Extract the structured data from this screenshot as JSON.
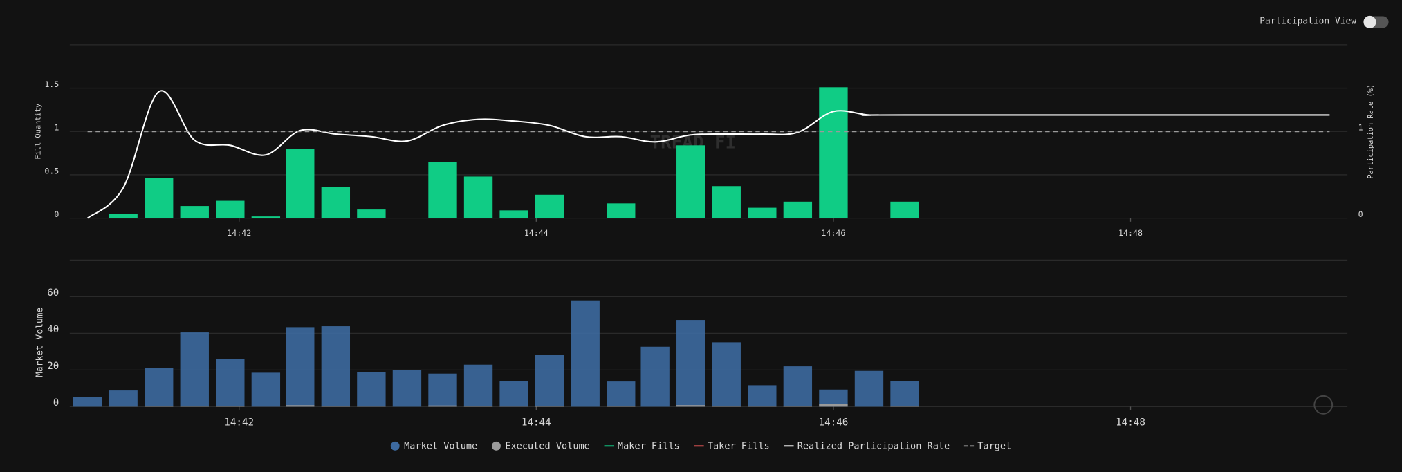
{
  "header": {
    "toggle_label": "Participation View",
    "watermark": "TREAD FI"
  },
  "chart_data": [
    {
      "type": "bar",
      "ylabel": "Fill Quantity",
      "y2label": "Participation Rate (%)",
      "x": [
        40.98,
        41.22,
        41.46,
        41.7,
        41.94,
        42.18,
        42.41,
        42.65,
        42.89,
        43.13,
        43.37,
        43.61,
        43.85,
        44.09,
        44.33,
        44.57,
        44.8,
        45.04,
        45.28,
        45.52,
        45.76,
        46.0,
        46.24,
        46.48
      ],
      "xlim": [
        40.86,
        49.46
      ],
      "xticks": [
        {
          "value": 42,
          "label": "14:42"
        },
        {
          "value": 44,
          "label": "14:44"
        },
        {
          "value": 46,
          "label": "14:46"
        },
        {
          "value": 48,
          "label": "14:48"
        }
      ],
      "ylim": [
        0,
        2
      ],
      "yticks": [
        0,
        0.5,
        1,
        1.5
      ],
      "y2lim": [
        0,
        2
      ],
      "y2ticks": [
        0,
        1
      ],
      "grid": true,
      "series": [
        {
          "name": "Maker Fills",
          "color": "#10cc85",
          "values": [
            0,
            0.05,
            0.46,
            0.14,
            0.2,
            0.02,
            0.8,
            0.36,
            0.1,
            0,
            0.65,
            0.48,
            0.09,
            0.27,
            0,
            0.17,
            0,
            0.84,
            0.37,
            0.12,
            0.19,
            1.51,
            0,
            0.19
          ]
        },
        {
          "name": "Taker Fills",
          "color": "#e05555",
          "values": [
            null,
            null,
            null,
            null,
            null,
            null,
            null,
            null,
            null,
            null,
            null,
            null,
            null,
            null,
            null,
            null,
            null,
            null,
            null,
            null,
            null,
            null,
            null,
            null
          ]
        },
        {
          "name": "Realized Participation Rate",
          "type": "line",
          "axis": "y2",
          "color": "#ffffff",
          "x": [
            40.98,
            41.22,
            41.46,
            41.7,
            41.94,
            42.18,
            42.41,
            42.65,
            42.89,
            43.13,
            43.37,
            43.61,
            43.85,
            44.09,
            44.33,
            44.57,
            44.8,
            45.04,
            45.28,
            45.52,
            45.76,
            46.0,
            46.24,
            46.48,
            49.34
          ],
          "values": [
            0,
            0.35,
            1.46,
            0.9,
            0.84,
            0.73,
            1.01,
            0.97,
            0.94,
            0.89,
            1.07,
            1.14,
            1.12,
            1.07,
            0.94,
            0.94,
            0.88,
            0.96,
            0.97,
            0.97,
            0.99,
            1.23,
            1.19,
            1.19,
            1.19
          ]
        }
      ],
      "target": {
        "name": "Target",
        "value": 1,
        "color": "#9a9a9a"
      }
    },
    {
      "type": "bar",
      "ylabel": "Market Volume",
      "x": [
        40.98,
        41.22,
        41.46,
        41.7,
        41.94,
        42.18,
        42.41,
        42.65,
        42.89,
        43.13,
        43.37,
        43.61,
        43.85,
        44.09,
        44.33,
        44.57,
        44.8,
        45.04,
        45.28,
        45.52,
        45.76,
        46.0,
        46.24,
        46.48
      ],
      "xlim": [
        40.86,
        49.46
      ],
      "xticks": [
        {
          "value": 42,
          "label": "14:42"
        },
        {
          "value": 44,
          "label": "14:44"
        },
        {
          "value": 46,
          "label": "14:46"
        },
        {
          "value": 48,
          "label": "14:48"
        }
      ],
      "ylim": [
        0,
        80
      ],
      "yticks": [
        0,
        20,
        40,
        60
      ],
      "grid": true,
      "series": [
        {
          "name": "Market Volume",
          "color": "#3d6aa0",
          "values": [
            5.4,
            8.8,
            21,
            40.5,
            25.9,
            18.5,
            43.4,
            43.9,
            19,
            20,
            18,
            22.9,
            14.1,
            28.3,
            58,
            13.7,
            32.7,
            47.3,
            35.1,
            11.7,
            22,
            9.3,
            19.5,
            14.1
          ]
        },
        {
          "name": "Executed Volume",
          "color": "#9a9a9a",
          "values": [
            0,
            0.05,
            0.46,
            0.14,
            0.2,
            0.02,
            0.8,
            0.36,
            0.1,
            0,
            0.65,
            0.48,
            0.09,
            0.27,
            0,
            0.17,
            0,
            0.84,
            0.37,
            0.12,
            0.19,
            1.51,
            0,
            0.19
          ]
        }
      ]
    }
  ]
}
